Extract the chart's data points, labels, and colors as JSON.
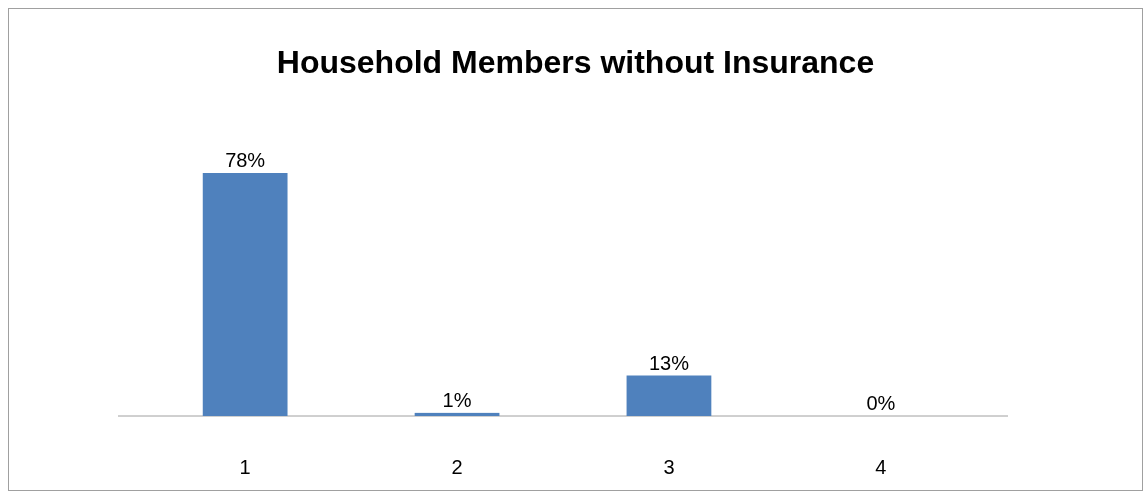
{
  "chart_data": {
    "type": "bar",
    "title": "Household Members without Insurance",
    "categories": [
      "1",
      "2",
      "3",
      "4"
    ],
    "values": [
      78,
      1,
      13,
      0
    ],
    "color": "#4f81bd",
    "data_labels": true,
    "value_labels": [
      "78%",
      "1%",
      "13%",
      "0%"
    ]
  }
}
